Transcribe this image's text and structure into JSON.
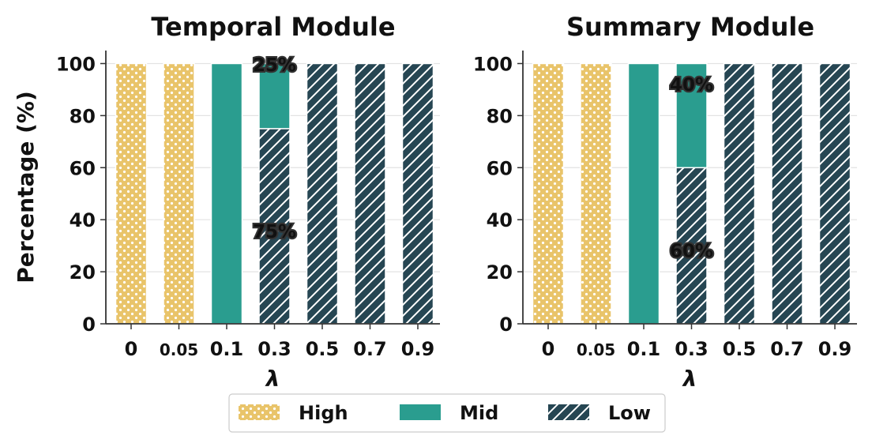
{
  "figure": {
    "ylabel": "Percentage (%)",
    "legend": [
      {
        "name": "High",
        "color": "#E9C46A",
        "pattern": "dots"
      },
      {
        "name": "Mid",
        "color": "#2A9D8F",
        "pattern": "solid"
      },
      {
        "name": "Low",
        "color": "#264653",
        "pattern": "hatch"
      }
    ],
    "legend_placement": "bottom-center"
  },
  "chart_data": [
    {
      "type": "bar",
      "stacked": true,
      "title": "Temporal Module",
      "xlabel": "λ",
      "ylabel": "Percentage (%)",
      "categories": [
        "0",
        "0.05",
        "0.1",
        "0.3",
        "0.5",
        "0.7",
        "0.9"
      ],
      "series": [
        {
          "name": "Low",
          "values": [
            0,
            0,
            0,
            75,
            100,
            100,
            100
          ]
        },
        {
          "name": "Mid",
          "values": [
            0,
            0,
            100,
            25,
            0,
            0,
            0
          ]
        },
        {
          "name": "High",
          "values": [
            100,
            100,
            0,
            0,
            0,
            0,
            0
          ]
        }
      ],
      "annotations": [
        {
          "category": "0.3",
          "series": "Mid",
          "text": "25%"
        },
        {
          "category": "0.3",
          "series": "Low",
          "text": "75%"
        }
      ],
      "ylim": [
        0,
        105
      ],
      "yticks": [
        0,
        20,
        40,
        60,
        80,
        100
      ],
      "grid": "horizontal"
    },
    {
      "type": "bar",
      "stacked": true,
      "title": "Summary Module",
      "xlabel": "λ",
      "ylabel": "",
      "categories": [
        "0",
        "0.05",
        "0.1",
        "0.3",
        "0.5",
        "0.7",
        "0.9"
      ],
      "series": [
        {
          "name": "Low",
          "values": [
            0,
            0,
            0,
            60,
            100,
            100,
            100
          ]
        },
        {
          "name": "Mid",
          "values": [
            0,
            0,
            100,
            40,
            0,
            0,
            0
          ]
        },
        {
          "name": "High",
          "values": [
            100,
            100,
            0,
            0,
            0,
            0,
            0
          ]
        }
      ],
      "annotations": [
        {
          "category": "0.3",
          "series": "Mid",
          "text": "40%"
        },
        {
          "category": "0.3",
          "series": "Low",
          "text": "60%"
        }
      ],
      "ylim": [
        0,
        105
      ],
      "yticks": [
        0,
        20,
        40,
        60,
        80,
        100
      ],
      "grid": "horizontal"
    }
  ]
}
